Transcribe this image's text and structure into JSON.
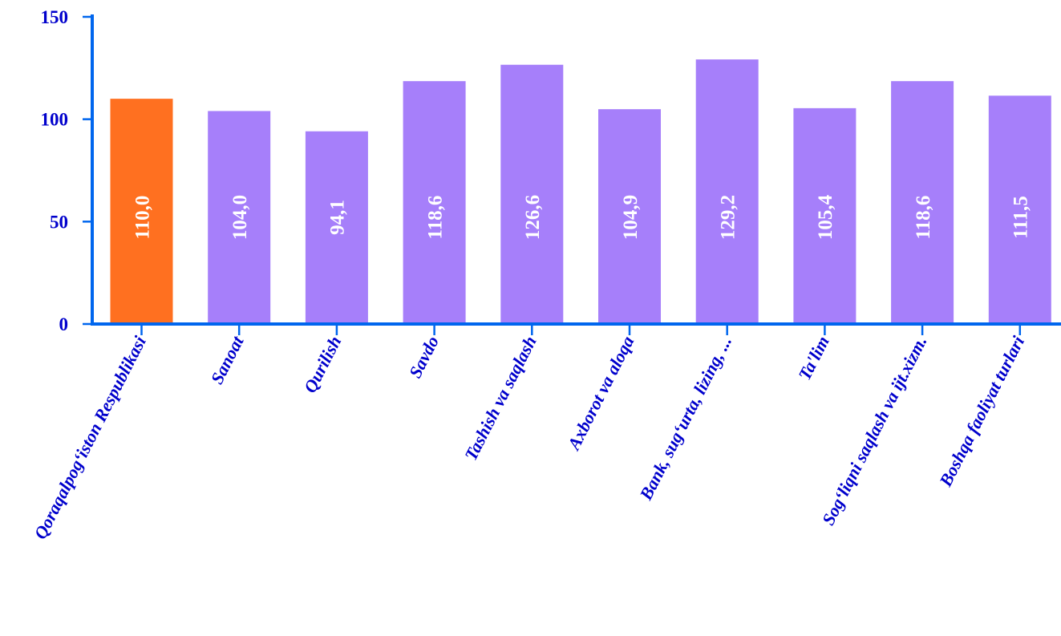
{
  "chart_data": {
    "type": "bar",
    "categories": [
      "Qoraqalpog‘iston Respublikasi",
      "Sanoat",
      "Qurilish",
      "Savdo",
      "Tashish va saqlash",
      "Axborot va aloqa",
      "Bank, sug‘urta, lizing, ...",
      "Ta'lim",
      "Sog‘liqni saqlash va ijt.xizm.",
      "Boshqa faoliyat turlari"
    ],
    "values": [
      110.0,
      104.0,
      94.1,
      118.6,
      126.6,
      104.9,
      129.2,
      105.4,
      118.6,
      111.5
    ],
    "data_labels": [
      "110,0",
      "104,0",
      "94,1",
      "118,6",
      "126,6",
      "104,9",
      "129,2",
      "105,4",
      "118,6",
      "111,5"
    ],
    "y_ticks": [
      0,
      50,
      100,
      150
    ],
    "y_tick_labels": [
      "0",
      "50",
      "100",
      "150"
    ],
    "ylim": [
      0,
      150
    ],
    "title": "",
    "xlabel": "",
    "ylabel": "",
    "grid": false,
    "legend": "none",
    "colors": {
      "highlight_bar": "#ff7020",
      "bar": "#a67ffa",
      "axis": "#0066ee",
      "text": "#0000cc",
      "data_label": "#ffffff"
    }
  }
}
